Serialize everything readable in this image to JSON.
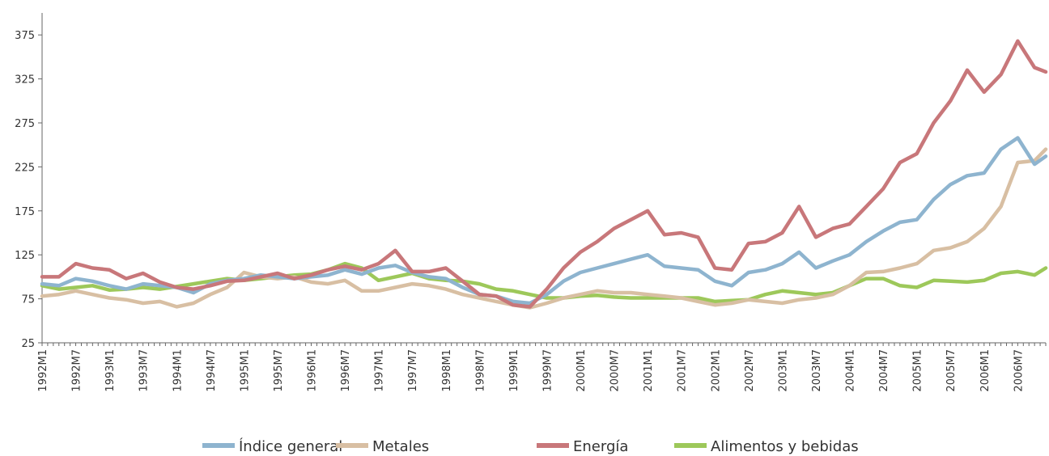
{
  "chart_data": {
    "type": "line",
    "title": "",
    "xlabel": "",
    "ylabel": "",
    "ylim": [
      25,
      400
    ],
    "yticks": [
      25,
      75,
      125,
      175,
      225,
      275,
      325,
      375
    ],
    "grid": false,
    "legend_position": "bottom",
    "x_tick_labels": [
      "1992M1",
      "1992M7",
      "1993M1",
      "1993M7",
      "1994M1",
      "1994M7",
      "1995M1",
      "1995M7",
      "1996M1",
      "1996M7",
      "1997M1",
      "1997M7",
      "1998M1",
      "1998M7",
      "1999M1",
      "1999M7",
      "2000M1",
      "2000M7",
      "2001M1",
      "2001M7",
      "2002M1",
      "2002M7",
      "2003M1",
      "2003M7",
      "2004M1",
      "2004M7",
      "2005M1",
      "2005M7",
      "2006M1",
      "2006M7"
    ],
    "x_start": "1992M1",
    "x_end": "2006M12",
    "series": [
      {
        "name": "Índice general",
        "color": "#8eb4cf",
        "points": [
          [
            "1992M1",
            92
          ],
          [
            "1992M4",
            90
          ],
          [
            "1992M7",
            98
          ],
          [
            "1992M10",
            95
          ],
          [
            "1993M1",
            90
          ],
          [
            "1993M4",
            86
          ],
          [
            "1993M7",
            92
          ],
          [
            "1993M10",
            90
          ],
          [
            "1994M1",
            88
          ],
          [
            "1994M4",
            82
          ],
          [
            "1994M7",
            92
          ],
          [
            "1994M10",
            96
          ],
          [
            "1995M1",
            98
          ],
          [
            "1995M4",
            102
          ],
          [
            "1995M7",
            100
          ],
          [
            "1995M10",
            98
          ],
          [
            "1996M1",
            100
          ],
          [
            "1996M4",
            102
          ],
          [
            "1996M7",
            108
          ],
          [
            "1996M10",
            103
          ],
          [
            "1997M1",
            110
          ],
          [
            "1997M4",
            113
          ],
          [
            "1997M7",
            105
          ],
          [
            "1997M10",
            100
          ],
          [
            "1998M1",
            98
          ],
          [
            "1998M4",
            88
          ],
          [
            "1998M7",
            80
          ],
          [
            "1998M10",
            78
          ],
          [
            "1999M1",
            72
          ],
          [
            "1999M4",
            70
          ],
          [
            "1999M7",
            80
          ],
          [
            "1999M10",
            95
          ],
          [
            "2000M1",
            105
          ],
          [
            "2000M4",
            110
          ],
          [
            "2000M7",
            115
          ],
          [
            "2000M10",
            120
          ],
          [
            "2001M1",
            125
          ],
          [
            "2001M4",
            112
          ],
          [
            "2001M7",
            110
          ],
          [
            "2001M10",
            108
          ],
          [
            "2002M1",
            95
          ],
          [
            "2002M4",
            90
          ],
          [
            "2002M7",
            105
          ],
          [
            "2002M10",
            108
          ],
          [
            "2003M1",
            115
          ],
          [
            "2003M4",
            128
          ],
          [
            "2003M7",
            110
          ],
          [
            "2003M10",
            118
          ],
          [
            "2004M1",
            125
          ],
          [
            "2004M4",
            140
          ],
          [
            "2004M7",
            152
          ],
          [
            "2004M10",
            162
          ],
          [
            "2005M1",
            165
          ],
          [
            "2005M4",
            188
          ],
          [
            "2005M7",
            205
          ],
          [
            "2005M10",
            215
          ],
          [
            "2006M1",
            218
          ],
          [
            "2006M4",
            245
          ],
          [
            "2006M7",
            258
          ],
          [
            "2006M10",
            228
          ],
          [
            "2006M12",
            237
          ]
        ]
      },
      {
        "name": "Metales",
        "color": "#d8bfa3",
        "points": [
          [
            "1992M1",
            78
          ],
          [
            "1992M4",
            80
          ],
          [
            "1992M7",
            84
          ],
          [
            "1992M10",
            80
          ],
          [
            "1993M1",
            76
          ],
          [
            "1993M4",
            74
          ],
          [
            "1993M7",
            70
          ],
          [
            "1993M10",
            72
          ],
          [
            "1994M1",
            66
          ],
          [
            "1994M4",
            70
          ],
          [
            "1994M7",
            80
          ],
          [
            "1994M10",
            88
          ],
          [
            "1995M1",
            105
          ],
          [
            "1995M4",
            100
          ],
          [
            "1995M7",
            98
          ],
          [
            "1995M10",
            100
          ],
          [
            "1996M1",
            94
          ],
          [
            "1996M4",
            92
          ],
          [
            "1996M7",
            96
          ],
          [
            "1996M10",
            84
          ],
          [
            "1997M1",
            84
          ],
          [
            "1997M4",
            88
          ],
          [
            "1997M7",
            92
          ],
          [
            "1997M10",
            90
          ],
          [
            "1998M1",
            86
          ],
          [
            "1998M4",
            80
          ],
          [
            "1998M7",
            76
          ],
          [
            "1998M10",
            72
          ],
          [
            "1999M1",
            68
          ],
          [
            "1999M4",
            65
          ],
          [
            "1999M7",
            70
          ],
          [
            "1999M10",
            76
          ],
          [
            "2000M1",
            80
          ],
          [
            "2000M4",
            84
          ],
          [
            "2000M7",
            82
          ],
          [
            "2000M10",
            82
          ],
          [
            "2001M1",
            80
          ],
          [
            "2001M4",
            78
          ],
          [
            "2001M7",
            76
          ],
          [
            "2001M10",
            72
          ],
          [
            "2002M1",
            68
          ],
          [
            "2002M4",
            70
          ],
          [
            "2002M7",
            74
          ],
          [
            "2002M10",
            72
          ],
          [
            "2003M1",
            70
          ],
          [
            "2003M4",
            74
          ],
          [
            "2003M7",
            76
          ],
          [
            "2003M10",
            80
          ],
          [
            "2004M1",
            90
          ],
          [
            "2004M4",
            105
          ],
          [
            "2004M7",
            106
          ],
          [
            "2004M10",
            110
          ],
          [
            "2005M1",
            115
          ],
          [
            "2005M4",
            130
          ],
          [
            "2005M7",
            133
          ],
          [
            "2005M10",
            140
          ],
          [
            "2006M1",
            155
          ],
          [
            "2006M4",
            180
          ],
          [
            "2006M7",
            230
          ],
          [
            "2006M10",
            232
          ],
          [
            "2006M12",
            245
          ]
        ]
      },
      {
        "name": "Energía",
        "color": "#c8777a",
        "points": [
          [
            "1992M1",
            100
          ],
          [
            "1992M4",
            100
          ],
          [
            "1992M7",
            115
          ],
          [
            "1992M10",
            110
          ],
          [
            "1993M1",
            108
          ],
          [
            "1993M4",
            98
          ],
          [
            "1993M7",
            104
          ],
          [
            "1993M10",
            94
          ],
          [
            "1994M1",
            88
          ],
          [
            "1994M4",
            86
          ],
          [
            "1994M7",
            90
          ],
          [
            "1994M10",
            95
          ],
          [
            "1995M1",
            96
          ],
          [
            "1995M4",
            100
          ],
          [
            "1995M7",
            104
          ],
          [
            "1995M10",
            98
          ],
          [
            "1996M1",
            102
          ],
          [
            "1996M4",
            108
          ],
          [
            "1996M7",
            112
          ],
          [
            "1996M10",
            108
          ],
          [
            "1997M1",
            115
          ],
          [
            "1997M4",
            130
          ],
          [
            "1997M7",
            106
          ],
          [
            "1997M10",
            106
          ],
          [
            "1998M1",
            110
          ],
          [
            "1998M4",
            95
          ],
          [
            "1998M7",
            80
          ],
          [
            "1998M10",
            78
          ],
          [
            "1999M1",
            68
          ],
          [
            "1999M4",
            66
          ],
          [
            "1999M7",
            86
          ],
          [
            "1999M10",
            110
          ],
          [
            "2000M1",
            128
          ],
          [
            "2000M4",
            140
          ],
          [
            "2000M7",
            155
          ],
          [
            "2000M10",
            165
          ],
          [
            "2001M1",
            175
          ],
          [
            "2001M4",
            148
          ],
          [
            "2001M7",
            150
          ],
          [
            "2001M10",
            145
          ],
          [
            "2002M1",
            110
          ],
          [
            "2002M4",
            108
          ],
          [
            "2002M7",
            138
          ],
          [
            "2002M10",
            140
          ],
          [
            "2003M1",
            150
          ],
          [
            "2003M4",
            180
          ],
          [
            "2003M7",
            145
          ],
          [
            "2003M10",
            155
          ],
          [
            "2004M1",
            160
          ],
          [
            "2004M4",
            180
          ],
          [
            "2004M7",
            200
          ],
          [
            "2004M10",
            230
          ],
          [
            "2005M1",
            240
          ],
          [
            "2005M4",
            275
          ],
          [
            "2005M7",
            300
          ],
          [
            "2005M10",
            335
          ],
          [
            "2006M1",
            310
          ],
          [
            "2006M4",
            330
          ],
          [
            "2006M7",
            368
          ],
          [
            "2006M10",
            338
          ],
          [
            "2006M12",
            333
          ]
        ]
      },
      {
        "name": "Alimentos y bebidas",
        "color": "#9dc85a",
        "points": [
          [
            "1992M1",
            90
          ],
          [
            "1992M4",
            86
          ],
          [
            "1992M7",
            88
          ],
          [
            "1992M10",
            90
          ],
          [
            "1993M1",
            85
          ],
          [
            "1993M4",
            86
          ],
          [
            "1993M7",
            88
          ],
          [
            "1993M10",
            86
          ],
          [
            "1994M1",
            89
          ],
          [
            "1994M4",
            92
          ],
          [
            "1994M7",
            95
          ],
          [
            "1994M10",
            98
          ],
          [
            "1995M1",
            96
          ],
          [
            "1995M4",
            98
          ],
          [
            "1995M7",
            100
          ],
          [
            "1995M10",
            102
          ],
          [
            "1996M1",
            103
          ],
          [
            "1996M4",
            108
          ],
          [
            "1996M7",
            115
          ],
          [
            "1996M10",
            110
          ],
          [
            "1997M1",
            96
          ],
          [
            "1997M4",
            100
          ],
          [
            "1997M7",
            104
          ],
          [
            "1997M10",
            98
          ],
          [
            "1998M1",
            96
          ],
          [
            "1998M4",
            95
          ],
          [
            "1998M7",
            92
          ],
          [
            "1998M10",
            86
          ],
          [
            "1999M1",
            84
          ],
          [
            "1999M4",
            80
          ],
          [
            "1999M7",
            76
          ],
          [
            "1999M10",
            76
          ],
          [
            "2000M1",
            78
          ],
          [
            "2000M4",
            79
          ],
          [
            "2000M7",
            77
          ],
          [
            "2000M10",
            76
          ],
          [
            "2001M1",
            76
          ],
          [
            "2001M4",
            76
          ],
          [
            "2001M7",
            76
          ],
          [
            "2001M10",
            76
          ],
          [
            "2002M1",
            72
          ],
          [
            "2002M4",
            73
          ],
          [
            "2002M7",
            74
          ],
          [
            "2002M10",
            80
          ],
          [
            "2003M1",
            84
          ],
          [
            "2003M4",
            82
          ],
          [
            "2003M7",
            80
          ],
          [
            "2003M10",
            82
          ],
          [
            "2004M1",
            90
          ],
          [
            "2004M4",
            98
          ],
          [
            "2004M7",
            98
          ],
          [
            "2004M10",
            90
          ],
          [
            "2005M1",
            88
          ],
          [
            "2005M4",
            96
          ],
          [
            "2005M7",
            95
          ],
          [
            "2005M10",
            94
          ],
          [
            "2006M1",
            96
          ],
          [
            "2006M4",
            104
          ],
          [
            "2006M7",
            106
          ],
          [
            "2006M10",
            102
          ],
          [
            "2006M12",
            110
          ]
        ]
      }
    ]
  }
}
